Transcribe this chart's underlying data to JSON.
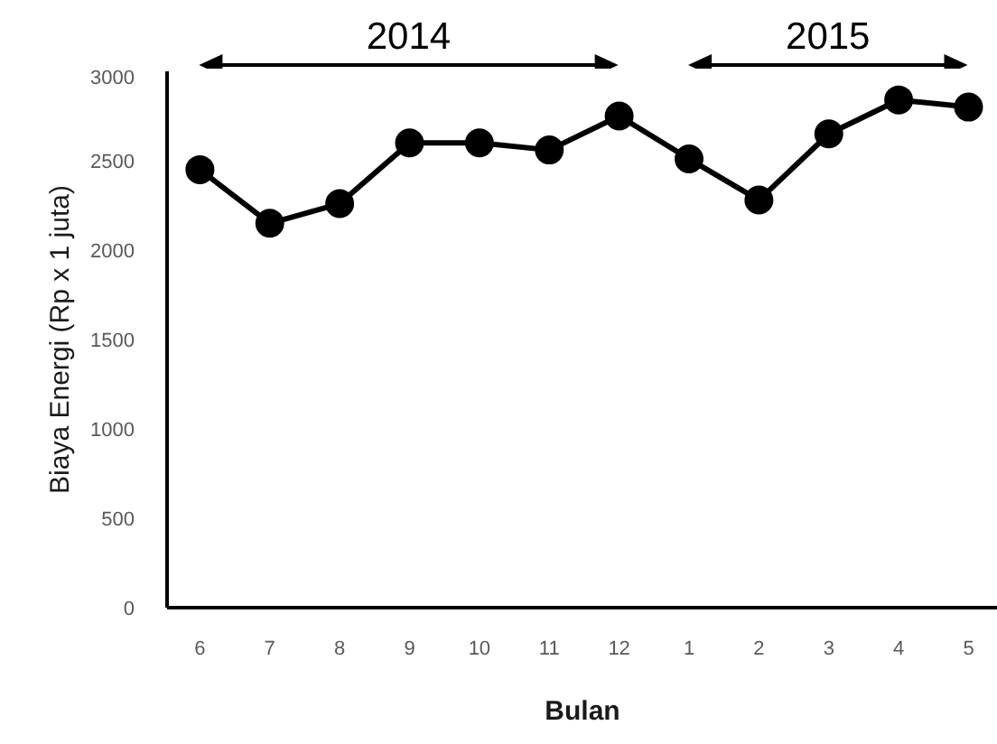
{
  "chart_data": {
    "type": "line",
    "xlabel": "Bulan",
    "ylabel": "Biaya Energi (Rp x 1 juta)",
    "categories": [
      "6",
      "7",
      "8",
      "9",
      "10",
      "11",
      "12",
      "1",
      "2",
      "3",
      "4",
      "5"
    ],
    "values": [
      2450,
      2150,
      2260,
      2600,
      2600,
      2560,
      2750,
      2510,
      2280,
      2650,
      2840,
      2800
    ],
    "color": "#000000",
    "marker": "circle",
    "line_style": "solid",
    "grid": false,
    "ylim": [
      0,
      3000
    ],
    "yticks": [
      0,
      500,
      1000,
      1500,
      2000,
      2500,
      3000
    ],
    "annotations": [
      "2014",
      "2015"
    ]
  }
}
